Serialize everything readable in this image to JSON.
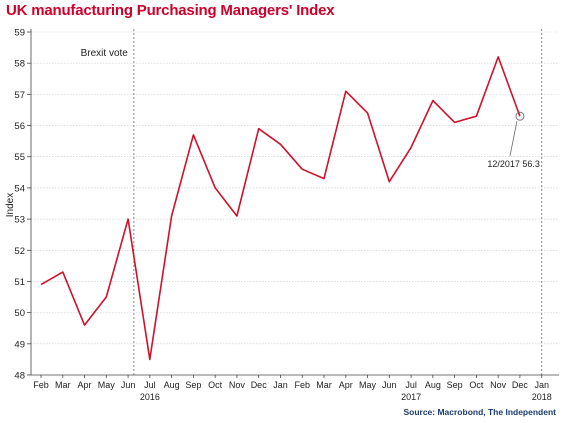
{
  "chart_data": {
    "type": "line",
    "title": "UK manufacturing Purchasing Managers' Index",
    "ylabel": "Index",
    "xlabel": "",
    "ylim": [
      48,
      59
    ],
    "yticks": [
      48,
      49,
      50,
      51,
      52,
      53,
      54,
      55,
      56,
      57,
      58,
      59
    ],
    "grid": true,
    "x_tick_labels": [
      "Feb",
      "Mar",
      "Apr",
      "May",
      "Jun",
      "Jul",
      "Aug",
      "Sep",
      "Oct",
      "Nov",
      "Dec",
      "Jan",
      "Feb",
      "Mar",
      "Apr",
      "May",
      "Jun",
      "Jul",
      "Aug",
      "Sep",
      "Oct",
      "Nov",
      "Dec",
      "Jan"
    ],
    "year_labels": [
      {
        "label": "2016",
        "month": "2016-07"
      },
      {
        "label": "2017",
        "month": "2017-07"
      },
      {
        "label": "2018",
        "month": "2018-01"
      }
    ],
    "x_start": "2016-02",
    "x_end": "2018-01",
    "series": [
      {
        "color": "#d0112b",
        "points": [
          {
            "x": "2016-02",
            "y": 50.9
          },
          {
            "x": "2016-03",
            "y": 51.3
          },
          {
            "x": "2016-04",
            "y": 49.6
          },
          {
            "x": "2016-05",
            "y": 50.5
          },
          {
            "x": "2016-06",
            "y": 53.0
          },
          {
            "x": "2016-07",
            "y": 48.5
          },
          {
            "x": "2016-08",
            "y": 53.1
          },
          {
            "x": "2016-09",
            "y": 55.7
          },
          {
            "x": "2016-10",
            "y": 54.0
          },
          {
            "x": "2016-11",
            "y": 53.1
          },
          {
            "x": "2016-12",
            "y": 55.9
          },
          {
            "x": "2017-01",
            "y": 55.4
          },
          {
            "x": "2017-02",
            "y": 54.6
          },
          {
            "x": "2017-03",
            "y": 54.3
          },
          {
            "x": "2017-04",
            "y": 57.1
          },
          {
            "x": "2017-05",
            "y": 56.4
          },
          {
            "x": "2017-06",
            "y": 54.2
          },
          {
            "x": "2017-07",
            "y": 55.3
          },
          {
            "x": "2017-08",
            "y": 56.8
          },
          {
            "x": "2017-09",
            "y": 56.1
          },
          {
            "x": "2017-10",
            "y": 56.3
          },
          {
            "x": "2017-11",
            "y": 58.2
          },
          {
            "x": "2017-12",
            "y": 56.3
          }
        ]
      }
    ],
    "annotations": [
      {
        "type": "vline",
        "label": "Brexit vote",
        "x": "2016-06-23"
      },
      {
        "type": "vline",
        "label": "",
        "x": "2018-01"
      },
      {
        "type": "point-label",
        "label": "12/2017 56.3",
        "x": "2017-12",
        "y": 56.3
      }
    ],
    "source": "Source: Macrobond, The Independent"
  }
}
